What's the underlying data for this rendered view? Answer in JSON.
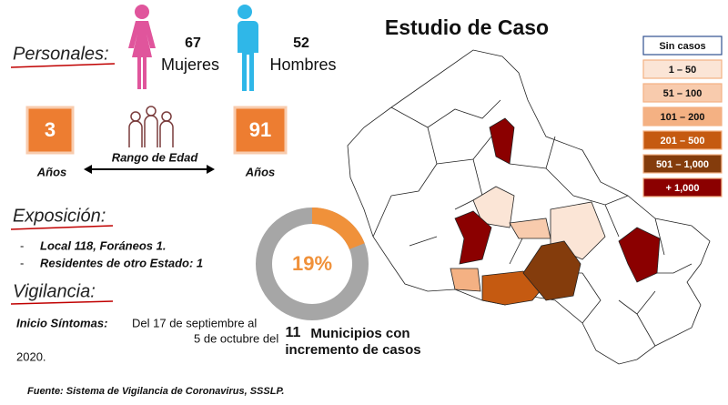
{
  "title": "Estudio de Caso",
  "personal": {
    "heading": "Personales:",
    "women": {
      "count": 67,
      "label": "Mujeres"
    },
    "men": {
      "count": 52,
      "label": "Hombres"
    }
  },
  "age": {
    "min": 3,
    "min_unit": "Años",
    "max": 91,
    "max_unit": "Años",
    "label": "Rango de Edad"
  },
  "exposure": {
    "heading": "Exposición:",
    "items": [
      "Local  118, Foráneos 1.",
      "Residentes de otro Estado: 1"
    ]
  },
  "surveillance": {
    "heading": "Vigilancia:",
    "onset_label": "Inicio Síntomas:",
    "onset_lines": [
      "Del 17 de septiembre al",
      "5 de octubre del",
      "2020."
    ]
  },
  "donut": {
    "value": 19,
    "value_label": "19%"
  },
  "municipalities": {
    "count": 11,
    "lines": [
      "Municipios con",
      "incremento de casos"
    ]
  },
  "legend": [
    {
      "label": "Sin casos",
      "color": "#ffffff"
    },
    {
      "label": "1 – 50",
      "color": "#fbe5d6"
    },
    {
      "label": "51 – 100",
      "color": "#f8cbad"
    },
    {
      "label": "101 – 200",
      "color": "#f4b183"
    },
    {
      "label": "201 – 500",
      "color": "#c55a11"
    },
    {
      "label": "501 – 1,000",
      "color": "#843c0c"
    },
    {
      "label": "+ 1,000",
      "color": "#8b0000"
    }
  ],
  "source": "Fuente: Sistema de Vigilancia de Coronavirus, SSSLP."
}
